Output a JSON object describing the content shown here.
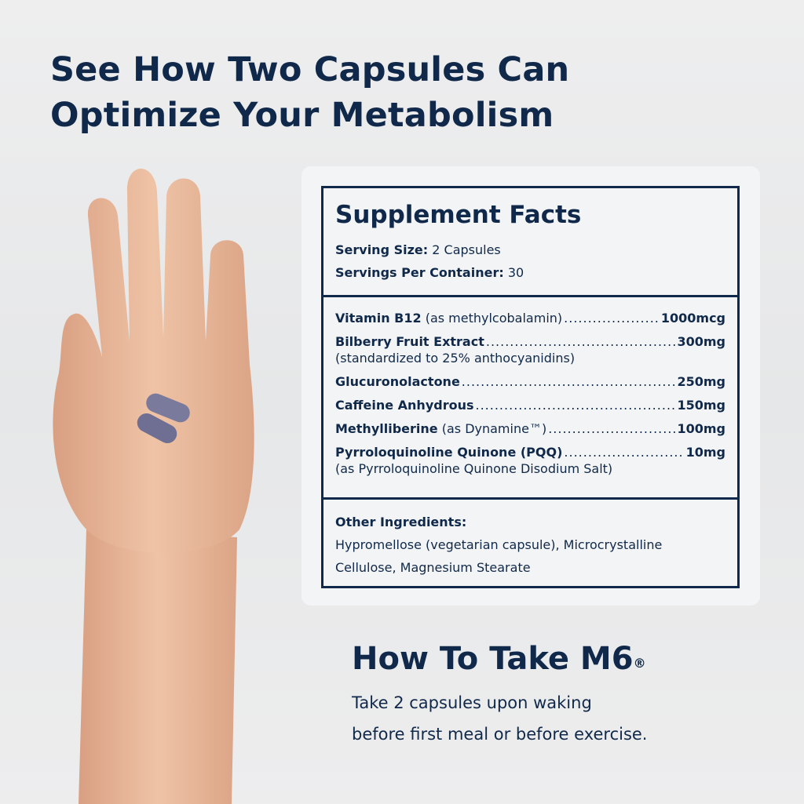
{
  "headline": {
    "line1": "See How Two Capsules Can",
    "line2": "Optimize Your Metabolism"
  },
  "supplement_facts": {
    "title": "Supplement Facts",
    "serving_size_label": "Serving Size:",
    "serving_size": "2 Capsules",
    "servings_label": "Servings Per Container:",
    "servings": "30",
    "ingredients": [
      {
        "name": "Vitamin B12",
        "note": "(as methylcobalamin)",
        "amount": "1000mcg"
      },
      {
        "name": "Bilberry Fruit Extract",
        "note": "",
        "amount": "300mg",
        "sub": "(standardized to 25% anthocyanidins)"
      },
      {
        "name": "Glucuronolactone",
        "note": "",
        "amount": "250mg"
      },
      {
        "name": "Caffeine Anhydrous",
        "note": "",
        "amount": "150mg"
      },
      {
        "name": "Methylliberine",
        "note": "(as Dynamine™)",
        "amount": "100mg"
      },
      {
        "name": "Pyrroloquinoline Quinone (PQQ)",
        "note": "",
        "amount": "10mg",
        "sub": "(as Pyrroloquinoline Quinone Disodium Salt)"
      }
    ],
    "other_label": "Other Ingredients:",
    "other_text": "Hypromellose (vegetarian capsule), Microcrystalline Cellulose, Magnesium Stearate"
  },
  "how_to": {
    "title": "How To Take M6",
    "mark": "®",
    "line1": "Take 2 capsules upon waking",
    "line2": "before first meal or before exercise."
  },
  "colors": {
    "navy": "#10294a",
    "skin": "#e9b99c",
    "capsule": "#7a7a9c"
  }
}
